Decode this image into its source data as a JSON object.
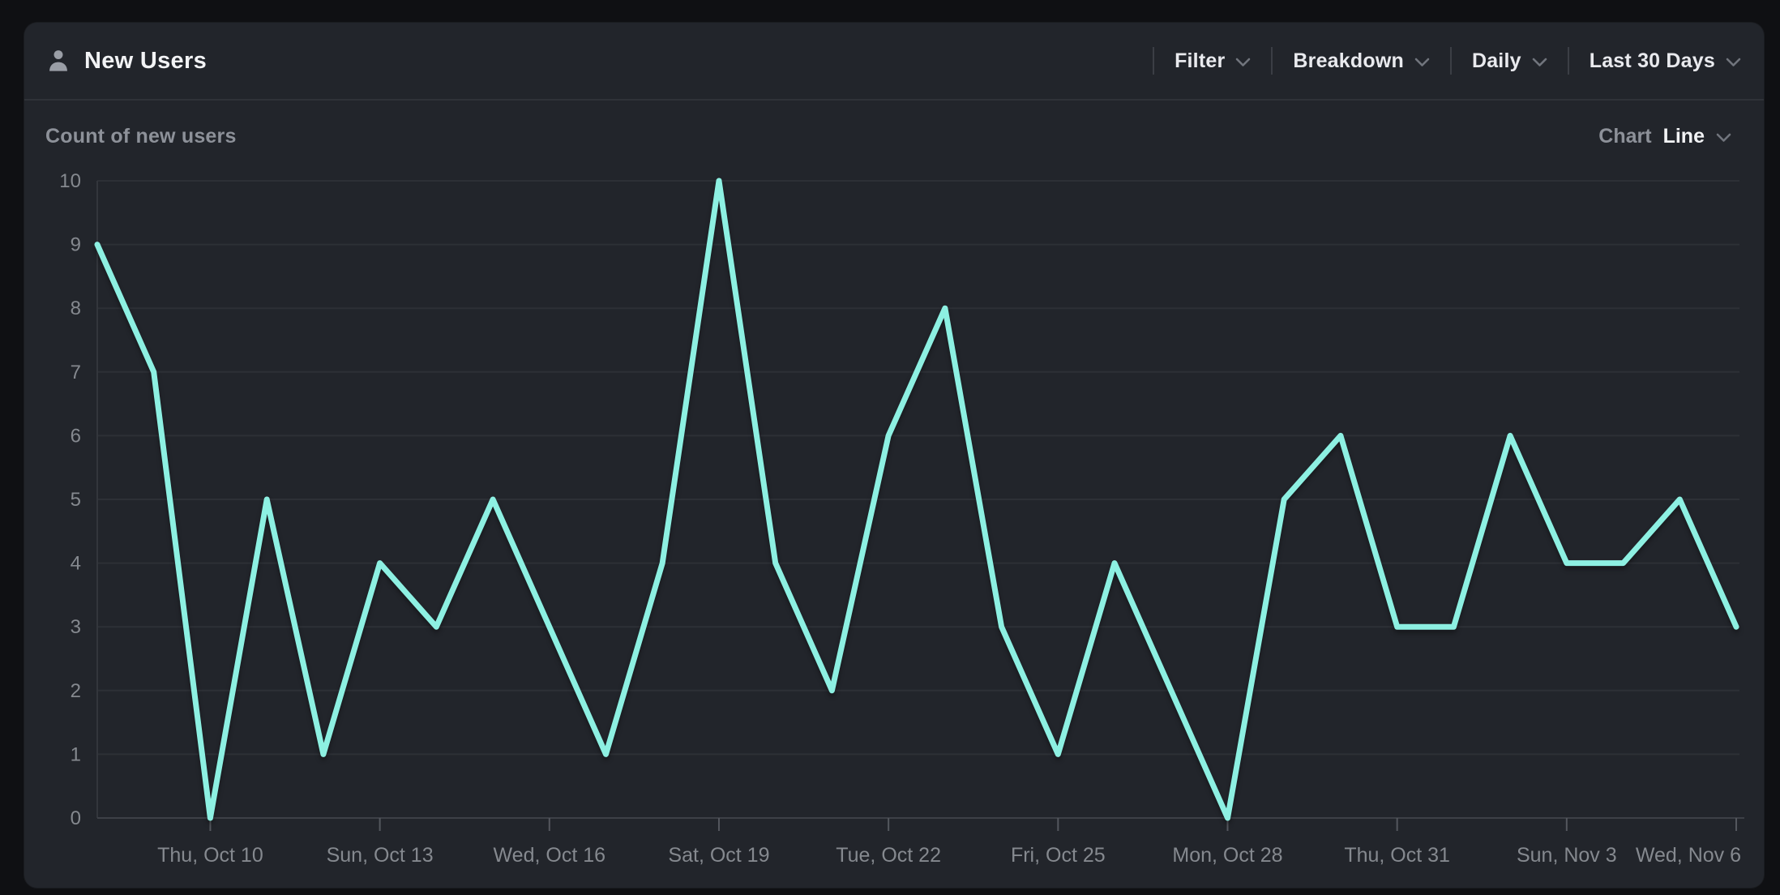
{
  "header": {
    "title": "New Users",
    "controls": [
      {
        "label": "Filter"
      },
      {
        "label": "Breakdown"
      },
      {
        "label": "Daily"
      },
      {
        "label": "Last 30 Days"
      }
    ]
  },
  "subheader": {
    "subtitle": "Count of new users",
    "chart_label": "Chart",
    "chart_type": "Line"
  },
  "chart_data": {
    "type": "line",
    "title": "Count of new users",
    "series_name": "New Users",
    "values": [
      9,
      7,
      0,
      5,
      1,
      4,
      3,
      5,
      3,
      1,
      4,
      10,
      4,
      2,
      6,
      8,
      3,
      1,
      4,
      2,
      0,
      5,
      6,
      3,
      3,
      6,
      4,
      4,
      5,
      3
    ],
    "x_tick_labels": [
      {
        "index": 2,
        "label": "Thu, Oct 10"
      },
      {
        "index": 5,
        "label": "Sun, Oct 13"
      },
      {
        "index": 8,
        "label": "Wed, Oct 16"
      },
      {
        "index": 11,
        "label": "Sat, Oct 19"
      },
      {
        "index": 14,
        "label": "Tue, Oct 22"
      },
      {
        "index": 17,
        "label": "Fri, Oct 25"
      },
      {
        "index": 20,
        "label": "Mon, Oct 28"
      },
      {
        "index": 23,
        "label": "Thu, Oct 31"
      },
      {
        "index": 26,
        "label": "Sun, Nov 3"
      },
      {
        "index": 29,
        "label": "Wed, Nov 6"
      }
    ],
    "y_ticks": [
      0,
      1,
      2,
      3,
      4,
      5,
      6,
      7,
      8,
      9,
      10
    ],
    "ylim": [
      0,
      10
    ],
    "grid": true,
    "legend": "none",
    "colors": {
      "line": "#8df0e2",
      "grid": "#2d3036",
      "axis": "#3d4047",
      "tick": "#54575e",
      "axis_label": "#85898f"
    }
  }
}
